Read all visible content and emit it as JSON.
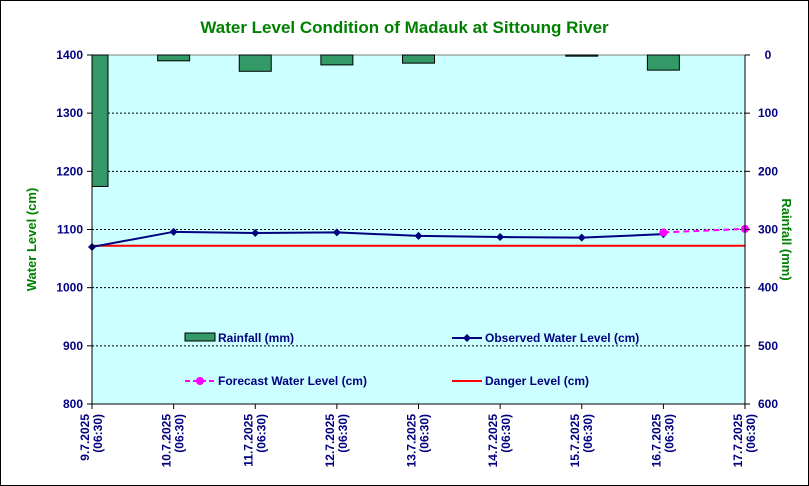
{
  "colors": {
    "plot_background": "#ccffff",
    "rainfall_bar": "#339966",
    "observed_line": "#000080",
    "forecast_line": "#ff00ff",
    "danger_line": "#ff0000",
    "title_color": "#008000",
    "tick_label_color": "#000080"
  },
  "chart_data": {
    "type": "line",
    "title": "Water Level Condition of Madauk at Sittoung River",
    "xlabel": "",
    "ylabel": "Water Level (cm)",
    "y2label": "Rainfall (mm)",
    "categories": [
      "9.7.2025\n(06:30)",
      "10.7.2025\n(06:30)",
      "11.7.2025\n(06:30)",
      "12.7.2025\n(06:30)",
      "13.7.2025\n(06:30)",
      "14.7.2025\n(06:30)",
      "15.7.2025\n(06:30)",
      "16.7.2025\n(06:30)",
      "17.7.2025\n(06:30)"
    ],
    "ylim": [
      800,
      1400
    ],
    "yticks": [
      800,
      900,
      1000,
      1100,
      1200,
      1300,
      1400
    ],
    "y2lim": [
      0,
      600
    ],
    "y2ticks": [
      0,
      100,
      200,
      300,
      400,
      500,
      600
    ],
    "y2_inverted": true,
    "grid": "horizontal dashed",
    "series": [
      {
        "name": "Rainfall (mm)",
        "type": "bar",
        "axis": "y2",
        "values": [
          226,
          10,
          28,
          17,
          14,
          null,
          2,
          26,
          null
        ]
      },
      {
        "name": "Observed Water Level (cm)",
        "type": "line",
        "axis": "y",
        "values": [
          1070,
          1096,
          1094,
          1095,
          1089,
          1087,
          1086,
          1092,
          null
        ]
      },
      {
        "name": "Forecast Water Level (cm)",
        "type": "line-dashed",
        "axis": "y",
        "values": [
          null,
          null,
          null,
          null,
          null,
          null,
          null,
          1095,
          1101
        ]
      },
      {
        "name": "Danger Level (cm)",
        "type": "hline",
        "axis": "y",
        "value": 1072
      }
    ]
  }
}
